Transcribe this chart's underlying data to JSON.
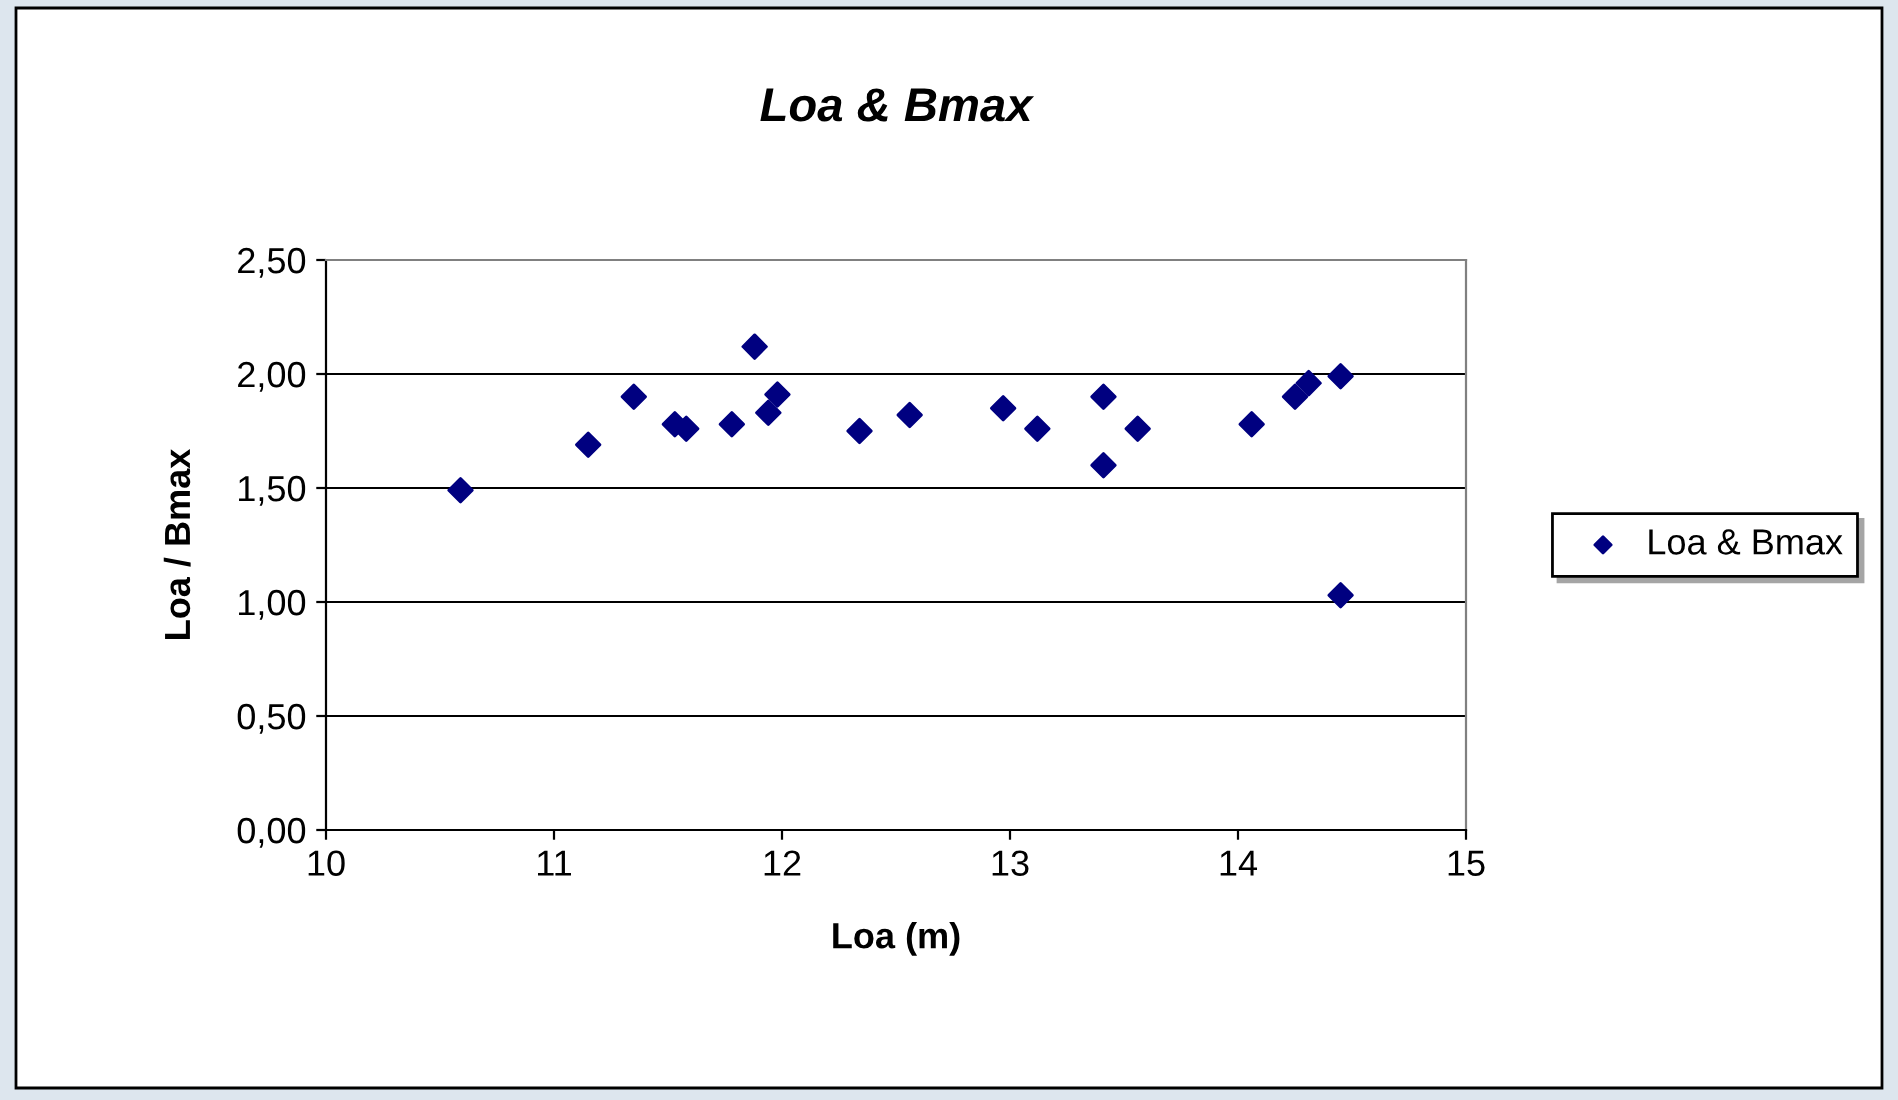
{
  "chart_data": {
    "type": "scatter",
    "title": "Loa & Bmax",
    "xlabel": "Loa (m)",
    "ylabel": "Loa / Bmax",
    "x": [
      10.59,
      11.15,
      11.35,
      11.53,
      11.58,
      11.78,
      11.88,
      11.94,
      11.98,
      12.34,
      12.56,
      12.97,
      13.12,
      13.41,
      13.41,
      13.56,
      14.06,
      14.25,
      14.31,
      14.45,
      14.45
    ],
    "series": [
      {
        "name": "Loa & Bmax",
        "color": "#000080",
        "values": [
          1.49,
          1.69,
          1.9,
          1.78,
          1.76,
          1.78,
          2.12,
          1.83,
          1.91,
          1.75,
          1.82,
          1.85,
          1.76,
          1.9,
          1.6,
          1.76,
          1.78,
          1.9,
          1.96,
          1.99,
          1.03
        ]
      }
    ],
    "xlim": [
      10,
      15
    ],
    "xticks": [
      10,
      11,
      12,
      13,
      14,
      15
    ],
    "ylim": [
      0,
      2.5
    ],
    "yticks": [
      {
        "value": 0,
        "label": "0,00"
      },
      {
        "value": 0.5,
        "label": "0,50"
      },
      {
        "value": 1.0,
        "label": "1,00"
      },
      {
        "value": 1.5,
        "label": "1,50"
      },
      {
        "value": 2.0,
        "label": "2,00"
      },
      {
        "value": 2.5,
        "label": "2,50"
      }
    ],
    "grid": "y",
    "legend": "right",
    "marker": "diamond"
  }
}
